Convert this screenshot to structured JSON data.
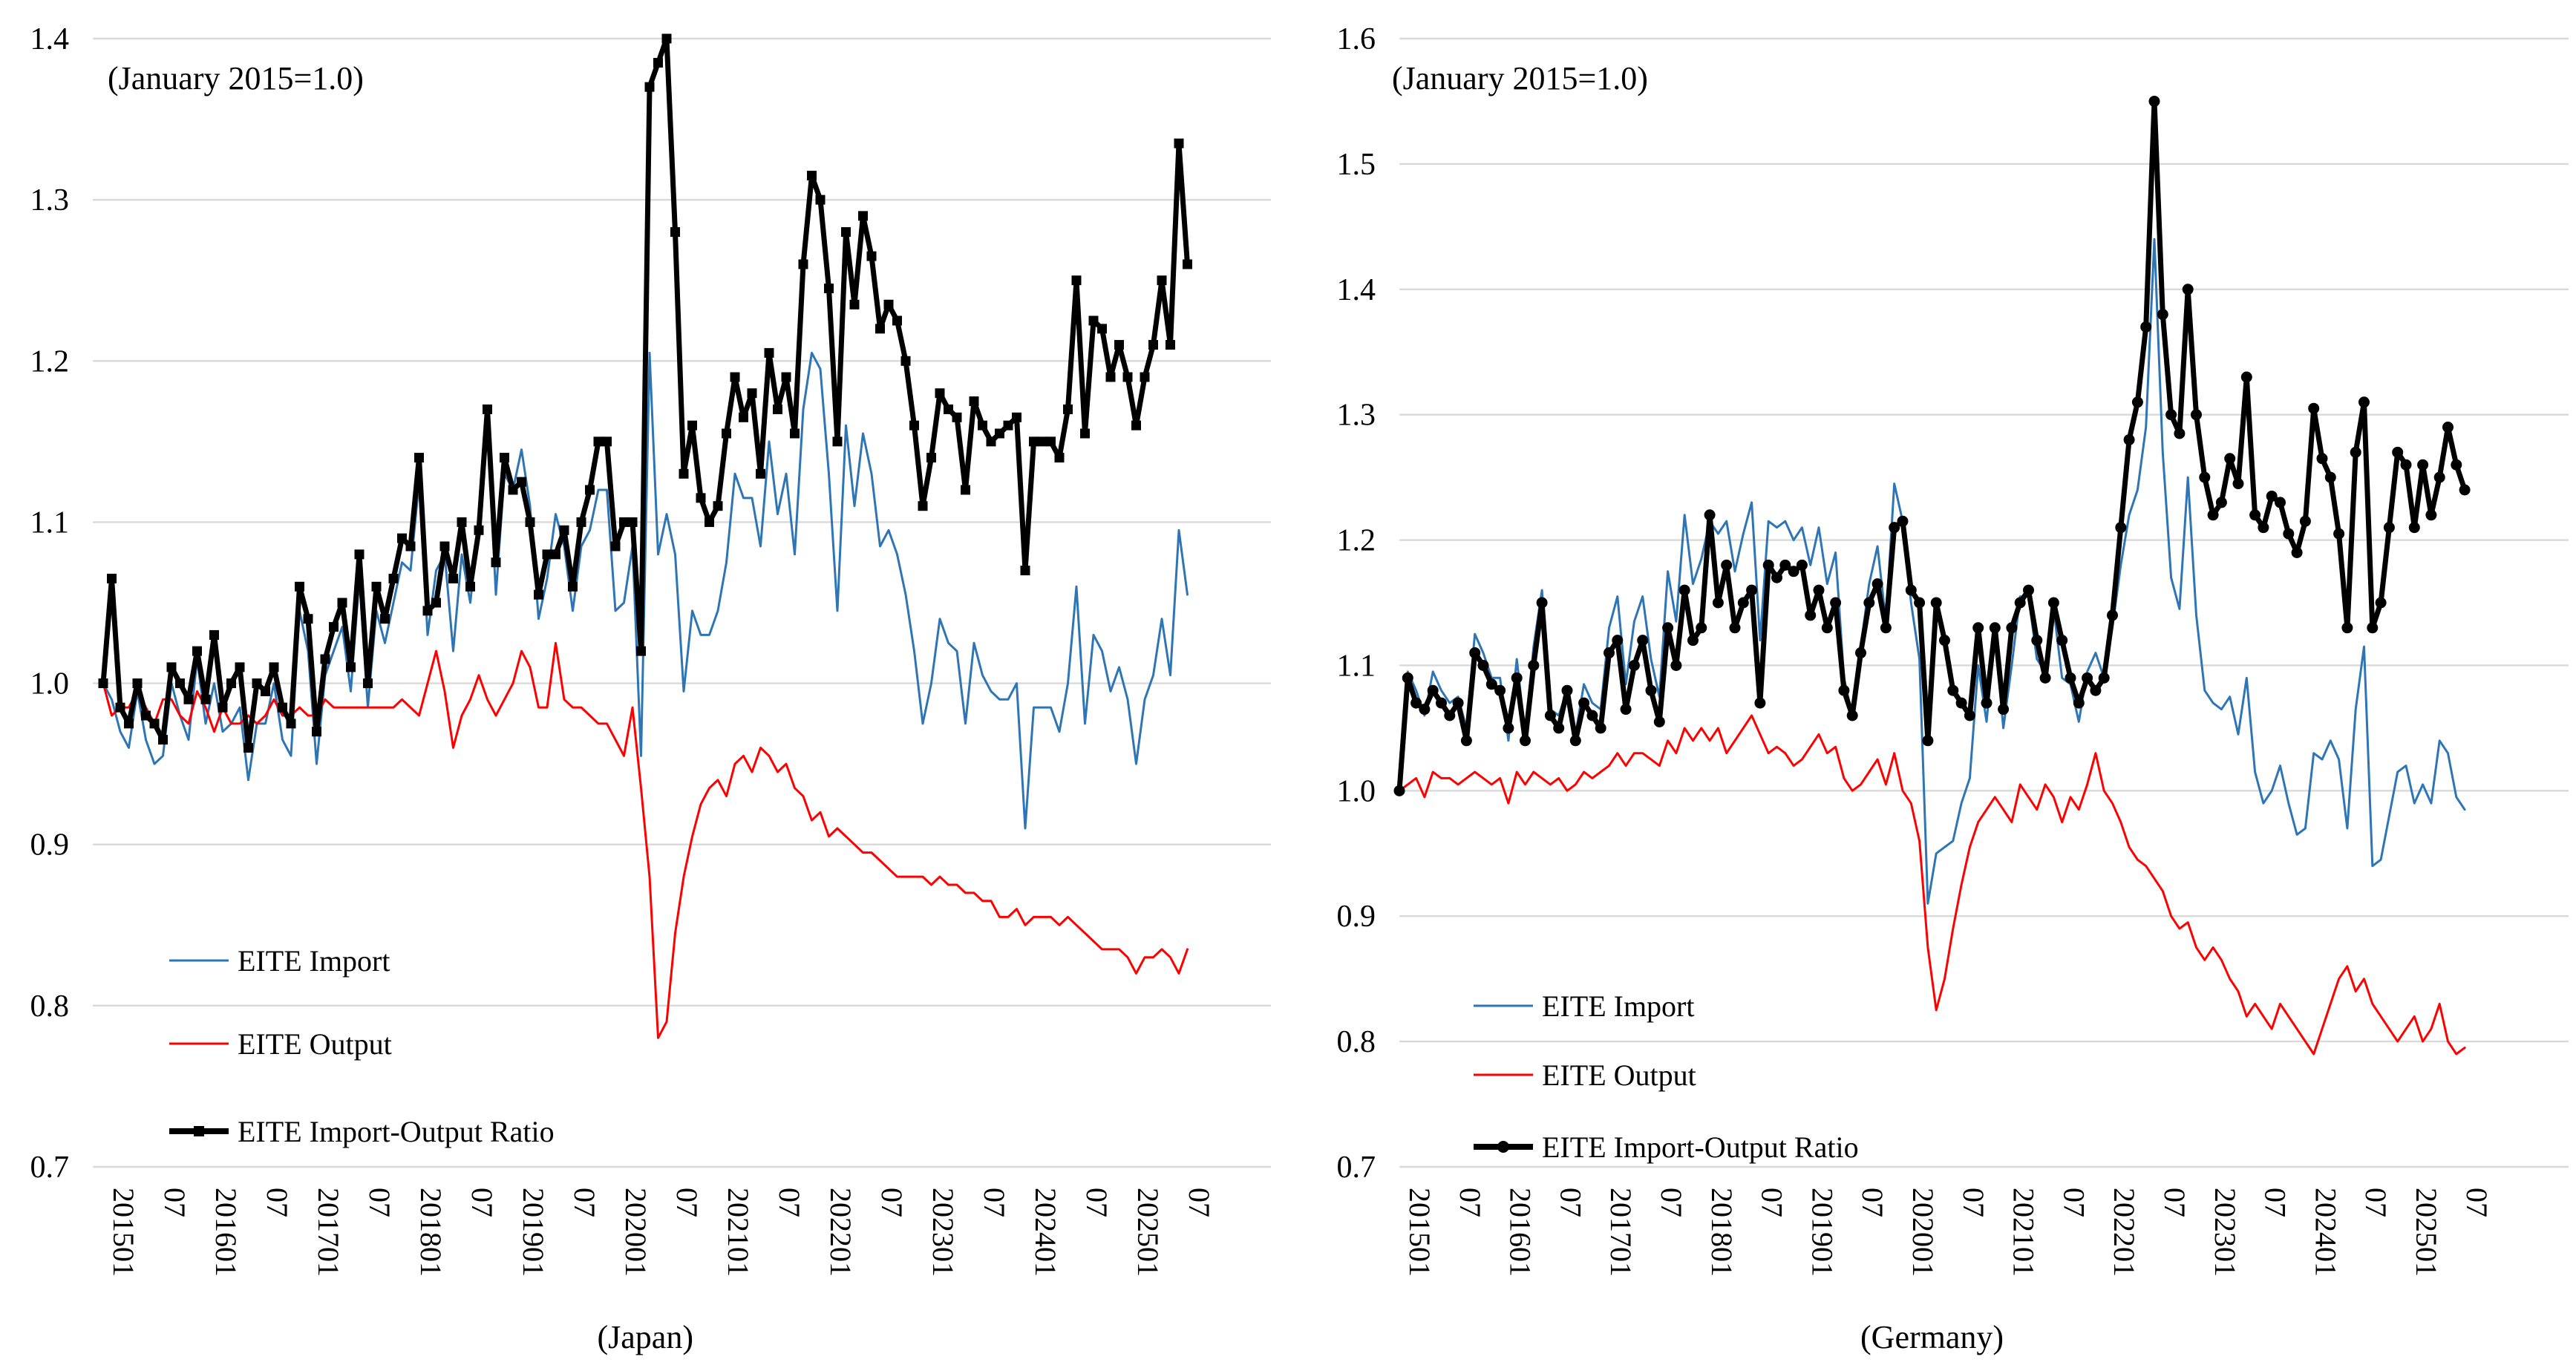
{
  "page": {
    "background": "#FFFFFF",
    "figure_type": "dual line chart",
    "annotation": "(January 2015=1.0)"
  },
  "charts": [
    {
      "name": "japan",
      "annotation": "(January 2015=1.0)",
      "axis_title": "(Japan)",
      "marker": "square",
      "y_tick_labels": [
        "1.4",
        "1.3",
        "1.2",
        "1.1",
        "1.0",
        "0.9",
        "0.8",
        "0.7"
      ],
      "x_tick_labels": [
        "201501",
        "07",
        "201601",
        "07",
        "201701",
        "07",
        "201801",
        "07",
        "201901",
        "07",
        "202001",
        "07",
        "202101",
        "07",
        "202201",
        "07",
        "202301",
        "07",
        "202401",
        "07",
        "202501",
        "07"
      ]
    },
    {
      "name": "germany",
      "annotation": "(January 2015=1.0)",
      "axis_title": "(Germany)",
      "marker": "circle",
      "y_tick_labels": [
        "1.6",
        "1.5",
        "1.4",
        "1.3",
        "1.2",
        "1.1",
        "1.0",
        "0.9",
        "0.8",
        "0.7"
      ],
      "x_tick_labels": [
        "201501",
        "07",
        "201601",
        "07",
        "201701",
        "07",
        "201801",
        "07",
        "201901",
        "07",
        "202001",
        "07",
        "202101",
        "07",
        "202201",
        "07",
        "202301",
        "07",
        "202401",
        "07",
        "202501",
        "07"
      ]
    }
  ],
  "style": {
    "grid_color": "#D9D9D9",
    "axis_color": "#BFBFBF",
    "import_color": "#2E75B6",
    "output_color": "#FF0000",
    "ratio_color": "#000000"
  },
  "chart_data": [
    {
      "type": "line",
      "title": "(Japan)",
      "annotation": "(January 2015=1.0)",
      "x_start": "201501",
      "x_freq": "monthly",
      "n_points": 128,
      "ylim": [
        0.7,
        1.4
      ],
      "ytick_step": 0.1,
      "grid": true,
      "legend_position": "inside-lower-left",
      "series": [
        {
          "name": "EITE Import",
          "color": "#2E75B6",
          "marker": "none",
          "values": [
            1.0,
            0.99,
            0.97,
            0.96,
            0.995,
            0.965,
            0.95,
            0.955,
            1.0,
            0.98,
            0.965,
            1.015,
            0.975,
            1.0,
            0.97,
            0.975,
            0.985,
            0.94,
            0.975,
            0.975,
            1.0,
            0.965,
            0.955,
            1.045,
            1.02,
            0.95,
            1.005,
            1.02,
            1.035,
            0.995,
            1.065,
            0.985,
            1.045,
            1.025,
            1.05,
            1.075,
            1.07,
            1.125,
            1.03,
            1.07,
            1.08,
            1.02,
            1.08,
            1.05,
            1.1,
            1.16,
            1.055,
            1.13,
            1.12,
            1.145,
            1.11,
            1.04,
            1.065,
            1.105,
            1.085,
            1.045,
            1.085,
            1.095,
            1.12,
            1.12,
            1.045,
            1.05,
            1.085,
            0.955,
            1.205,
            1.08,
            1.105,
            1.08,
            0.995,
            1.045,
            1.03,
            1.03,
            1.045,
            1.075,
            1.13,
            1.115,
            1.115,
            1.085,
            1.15,
            1.105,
            1.13,
            1.08,
            1.17,
            1.205,
            1.195,
            1.13,
            1.045,
            1.16,
            1.11,
            1.155,
            1.13,
            1.085,
            1.095,
            1.08,
            1.055,
            1.02,
            0.975,
            1.0,
            1.04,
            1.025,
            1.02,
            0.975,
            1.025,
            1.005,
            0.995,
            0.99,
            0.99,
            1.0,
            0.91,
            0.985,
            0.985,
            0.985,
            0.97,
            1.0,
            1.06,
            0.975,
            1.03,
            1.02,
            0.995,
            1.01,
            0.99,
            0.95,
            0.99,
            1.005,
            1.04,
            1.005,
            1.095,
            1.055
          ]
        },
        {
          "name": "EITE Output",
          "color": "#FF0000",
          "marker": "none",
          "values": [
            1.0,
            0.98,
            0.985,
            0.985,
            0.995,
            0.985,
            0.975,
            0.99,
            0.99,
            0.98,
            0.975,
            0.995,
            0.985,
            0.97,
            0.985,
            0.975,
            0.975,
            0.98,
            0.975,
            0.98,
            0.99,
            0.98,
            0.98,
            0.985,
            0.98,
            0.98,
            0.99,
            0.985,
            0.985,
            0.985,
            0.985,
            0.985,
            0.985,
            0.985,
            0.985,
            0.99,
            0.985,
            0.98,
            1.0,
            1.02,
            0.995,
            0.96,
            0.98,
            0.99,
            1.005,
            0.99,
            0.98,
            0.99,
            1.0,
            1.02,
            1.01,
            0.985,
            0.985,
            1.025,
            0.99,
            0.985,
            0.985,
            0.98,
            0.975,
            0.975,
            0.965,
            0.955,
            0.985,
            0.935,
            0.88,
            0.78,
            0.79,
            0.845,
            0.88,
            0.905,
            0.925,
            0.935,
            0.94,
            0.93,
            0.95,
            0.955,
            0.945,
            0.96,
            0.955,
            0.945,
            0.95,
            0.935,
            0.93,
            0.915,
            0.92,
            0.905,
            0.91,
            0.905,
            0.9,
            0.895,
            0.895,
            0.89,
            0.885,
            0.88,
            0.88,
            0.88,
            0.88,
            0.875,
            0.88,
            0.875,
            0.875,
            0.87,
            0.87,
            0.865,
            0.865,
            0.855,
            0.855,
            0.86,
            0.85,
            0.855,
            0.855,
            0.855,
            0.85,
            0.855,
            0.85,
            0.845,
            0.84,
            0.835,
            0.835,
            0.835,
            0.83,
            0.82,
            0.83,
            0.83,
            0.835,
            0.83,
            0.82,
            0.835
          ]
        },
        {
          "name": "EITE Import-Output Ratio",
          "color": "#000000",
          "marker": "square",
          "values": [
            1.0,
            1.065,
            0.985,
            0.975,
            1.0,
            0.98,
            0.975,
            0.965,
            1.01,
            1.0,
            0.99,
            1.02,
            0.99,
            1.03,
            0.985,
            1.0,
            1.01,
            0.96,
            1.0,
            0.995,
            1.01,
            0.985,
            0.975,
            1.06,
            1.04,
            0.97,
            1.015,
            1.035,
            1.05,
            1.01,
            1.08,
            1.0,
            1.06,
            1.04,
            1.065,
            1.09,
            1.085,
            1.14,
            1.045,
            1.05,
            1.085,
            1.065,
            1.1,
            1.06,
            1.095,
            1.17,
            1.075,
            1.14,
            1.12,
            1.125,
            1.1,
            1.055,
            1.08,
            1.08,
            1.095,
            1.06,
            1.1,
            1.12,
            1.15,
            1.15,
            1.085,
            1.1,
            1.1,
            1.02,
            1.37,
            1.385,
            1.4,
            1.28,
            1.13,
            1.16,
            1.115,
            1.1,
            1.11,
            1.155,
            1.19,
            1.165,
            1.18,
            1.13,
            1.205,
            1.17,
            1.19,
            1.155,
            1.26,
            1.315,
            1.3,
            1.245,
            1.15,
            1.28,
            1.235,
            1.29,
            1.265,
            1.22,
            1.235,
            1.225,
            1.2,
            1.16,
            1.11,
            1.14,
            1.18,
            1.17,
            1.165,
            1.12,
            1.175,
            1.16,
            1.15,
            1.155,
            1.16,
            1.165,
            1.07,
            1.15,
            1.15,
            1.15,
            1.14,
            1.17,
            1.25,
            1.155,
            1.225,
            1.22,
            1.19,
            1.21,
            1.19,
            1.16,
            1.19,
            1.21,
            1.25,
            1.21,
            1.335,
            1.26
          ]
        }
      ]
    },
    {
      "type": "line",
      "title": "(Germany)",
      "annotation": "(January 2015=1.0)",
      "x_start": "201501",
      "x_freq": "monthly",
      "n_points": 128,
      "ylim": [
        0.7,
        1.6
      ],
      "ytick_step": 0.1,
      "grid": true,
      "legend_position": "inside-lower-left",
      "series": [
        {
          "name": "EITE Import",
          "color": "#2E75B6",
          "marker": "none",
          "values": [
            1.0,
            1.095,
            1.08,
            1.06,
            1.095,
            1.08,
            1.07,
            1.075,
            1.05,
            1.125,
            1.11,
            1.09,
            1.09,
            1.04,
            1.105,
            1.045,
            1.115,
            1.16,
            1.065,
            1.06,
            1.08,
            1.045,
            1.085,
            1.07,
            1.065,
            1.13,
            1.155,
            1.085,
            1.135,
            1.155,
            1.105,
            1.075,
            1.175,
            1.135,
            1.22,
            1.165,
            1.185,
            1.215,
            1.205,
            1.215,
            1.175,
            1.205,
            1.23,
            1.12,
            1.215,
            1.21,
            1.215,
            1.2,
            1.21,
            1.18,
            1.21,
            1.165,
            1.19,
            1.09,
            1.06,
            1.115,
            1.165,
            1.195,
            1.135,
            1.245,
            1.215,
            1.15,
            1.105,
            0.91,
            0.95,
            0.955,
            0.96,
            0.99,
            1.01,
            1.1,
            1.055,
            1.125,
            1.05,
            1.1,
            1.155,
            1.155,
            1.105,
            1.095,
            1.145,
            1.09,
            1.085,
            1.055,
            1.095,
            1.11,
            1.09,
            1.13,
            1.18,
            1.22,
            1.24,
            1.29,
            1.44,
            1.27,
            1.17,
            1.145,
            1.25,
            1.14,
            1.08,
            1.07,
            1.065,
            1.075,
            1.045,
            1.09,
            1.015,
            0.99,
            1.0,
            1.02,
            0.99,
            0.965,
            0.97,
            1.03,
            1.025,
            1.04,
            1.025,
            0.97,
            1.065,
            1.115,
            0.94,
            0.945,
            0.98,
            1.015,
            1.02,
            0.99,
            1.005,
            0.99,
            1.04,
            1.03,
            0.995,
            0.985
          ]
        },
        {
          "name": "EITE Output",
          "color": "#FF0000",
          "marker": "none",
          "values": [
            1.0,
            1.005,
            1.01,
            0.995,
            1.015,
            1.01,
            1.01,
            1.005,
            1.01,
            1.015,
            1.01,
            1.005,
            1.01,
            0.99,
            1.015,
            1.005,
            1.015,
            1.01,
            1.005,
            1.01,
            1.0,
            1.005,
            1.015,
            1.01,
            1.015,
            1.02,
            1.03,
            1.02,
            1.03,
            1.03,
            1.025,
            1.02,
            1.04,
            1.03,
            1.05,
            1.04,
            1.05,
            1.04,
            1.05,
            1.03,
            1.04,
            1.05,
            1.06,
            1.045,
            1.03,
            1.035,
            1.03,
            1.02,
            1.025,
            1.035,
            1.045,
            1.03,
            1.035,
            1.01,
            1.0,
            1.005,
            1.015,
            1.025,
            1.005,
            1.03,
            1.0,
            0.99,
            0.96,
            0.875,
            0.825,
            0.85,
            0.89,
            0.925,
            0.955,
            0.975,
            0.985,
            0.995,
            0.985,
            0.975,
            1.005,
            0.995,
            0.985,
            1.005,
            0.995,
            0.975,
            0.995,
            0.985,
            1.005,
            1.03,
            1.0,
            0.99,
            0.975,
            0.955,
            0.945,
            0.94,
            0.93,
            0.92,
            0.9,
            0.89,
            0.895,
            0.875,
            0.865,
            0.875,
            0.865,
            0.85,
            0.84,
            0.82,
            0.83,
            0.82,
            0.81,
            0.83,
            0.82,
            0.81,
            0.8,
            0.79,
            0.81,
            0.83,
            0.85,
            0.86,
            0.84,
            0.85,
            0.83,
            0.82,
            0.81,
            0.8,
            0.81,
            0.82,
            0.8,
            0.81,
            0.83,
            0.8,
            0.79,
            0.795
          ]
        },
        {
          "name": "EITE Import-Output Ratio",
          "color": "#000000",
          "marker": "circle",
          "values": [
            1.0,
            1.09,
            1.07,
            1.065,
            1.08,
            1.07,
            1.06,
            1.07,
            1.04,
            1.11,
            1.1,
            1.085,
            1.08,
            1.05,
            1.09,
            1.04,
            1.1,
            1.15,
            1.06,
            1.05,
            1.08,
            1.04,
            1.07,
            1.06,
            1.05,
            1.11,
            1.12,
            1.065,
            1.1,
            1.12,
            1.08,
            1.055,
            1.13,
            1.1,
            1.16,
            1.12,
            1.13,
            1.22,
            1.15,
            1.18,
            1.13,
            1.15,
            1.16,
            1.07,
            1.18,
            1.17,
            1.18,
            1.175,
            1.18,
            1.14,
            1.16,
            1.13,
            1.15,
            1.08,
            1.06,
            1.11,
            1.15,
            1.165,
            1.13,
            1.21,
            1.215,
            1.16,
            1.15,
            1.04,
            1.15,
            1.12,
            1.08,
            1.07,
            1.06,
            1.13,
            1.07,
            1.13,
            1.065,
            1.13,
            1.15,
            1.16,
            1.12,
            1.09,
            1.15,
            1.12,
            1.09,
            1.07,
            1.09,
            1.08,
            1.09,
            1.14,
            1.21,
            1.28,
            1.31,
            1.37,
            1.55,
            1.38,
            1.3,
            1.285,
            1.4,
            1.3,
            1.25,
            1.22,
            1.23,
            1.265,
            1.245,
            1.33,
            1.22,
            1.21,
            1.235,
            1.23,
            1.205,
            1.19,
            1.215,
            1.305,
            1.265,
            1.25,
            1.205,
            1.13,
            1.27,
            1.31,
            1.13,
            1.15,
            1.21,
            1.27,
            1.26,
            1.21,
            1.26,
            1.22,
            1.25,
            1.29,
            1.26,
            1.24
          ]
        }
      ]
    }
  ]
}
